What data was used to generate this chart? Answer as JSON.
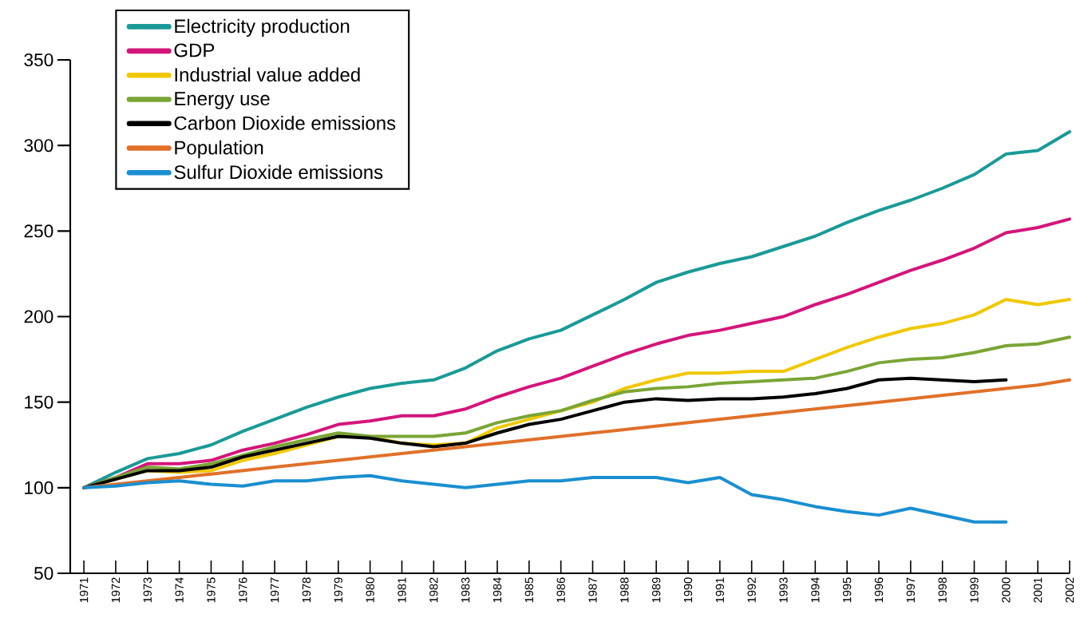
{
  "chart_data": {
    "type": "line",
    "categories": [
      "1971",
      "1972",
      "1973",
      "1974",
      "1975",
      "1976",
      "1977",
      "1978",
      "1979",
      "1980",
      "1981",
      "1982",
      "1983",
      "1984",
      "1985",
      "1986",
      "1987",
      "1988",
      "1989",
      "1990",
      "1991",
      "1992",
      "1993",
      "1994",
      "1995",
      "1996",
      "1997",
      "1998",
      "1999",
      "2000",
      "2001",
      "2002"
    ],
    "series": [
      {
        "name": "Electricity production",
        "color": "#1a9a96",
        "values": [
          100,
          109,
          117,
          120,
          125,
          133,
          140,
          147,
          153,
          158,
          161,
          163,
          170,
          180,
          187,
          192,
          201,
          210,
          220,
          226,
          231,
          235,
          241,
          247,
          255,
          262,
          268,
          275,
          283,
          295,
          297,
          308
        ]
      },
      {
        "name": "GDP",
        "color": "#d4157a",
        "values": [
          100,
          106,
          114,
          114,
          116,
          122,
          126,
          131,
          137,
          139,
          142,
          142,
          146,
          153,
          159,
          164,
          171,
          178,
          184,
          189,
          192,
          196,
          200,
          207,
          213,
          220,
          227,
          233,
          240,
          249,
          252,
          257
        ]
      },
      {
        "name": "Industrial value added",
        "color": "#f0c800",
        "values": [
          100,
          105,
          110,
          109,
          110,
          116,
          120,
          125,
          130,
          130,
          126,
          125,
          126,
          135,
          140,
          145,
          150,
          158,
          163,
          167,
          167,
          168,
          168,
          175,
          182,
          188,
          193,
          196,
          201,
          210,
          207,
          210
        ]
      },
      {
        "name": "Energy use",
        "color": "#7aa535",
        "values": [
          100,
          106,
          112,
          111,
          114,
          119,
          124,
          128,
          132,
          130,
          130,
          130,
          132,
          138,
          142,
          145,
          151,
          156,
          158,
          159,
          161,
          162,
          163,
          164,
          168,
          173,
          175,
          176,
          179,
          183,
          184,
          188
        ]
      },
      {
        "name": "Carbon Dioxide emissions",
        "color": "#000000",
        "values": [
          100,
          105,
          110,
          110,
          112,
          118,
          122,
          126,
          130,
          129,
          126,
          124,
          126,
          132,
          137,
          140,
          145,
          150,
          152,
          151,
          152,
          152,
          153,
          155,
          158,
          163,
          164,
          163,
          162,
          163,
          null,
          null
        ]
      },
      {
        "name": "Population",
        "color": "#e07028",
        "values": [
          100,
          102,
          104,
          106,
          108,
          110,
          112,
          114,
          116,
          118,
          120,
          122,
          124,
          126,
          128,
          130,
          132,
          134,
          136,
          138,
          140,
          142,
          144,
          146,
          148,
          150,
          152,
          154,
          156,
          158,
          160,
          163
        ]
      },
      {
        "name": "Sulfur Dioxide emissions",
        "color": "#1a8fd0",
        "values": [
          100,
          101,
          103,
          104,
          102,
          101,
          104,
          104,
          106,
          107,
          104,
          102,
          100,
          102,
          104,
          104,
          106,
          106,
          106,
          103,
          106,
          96,
          93,
          89,
          86,
          84,
          88,
          84,
          80,
          80,
          null,
          null
        ]
      }
    ],
    "ylim": [
      50,
      350
    ],
    "yticks": [
      50,
      100,
      150,
      200,
      250,
      300,
      350
    ],
    "legend": "top left",
    "marker": "none",
    "line_style": "solid"
  }
}
